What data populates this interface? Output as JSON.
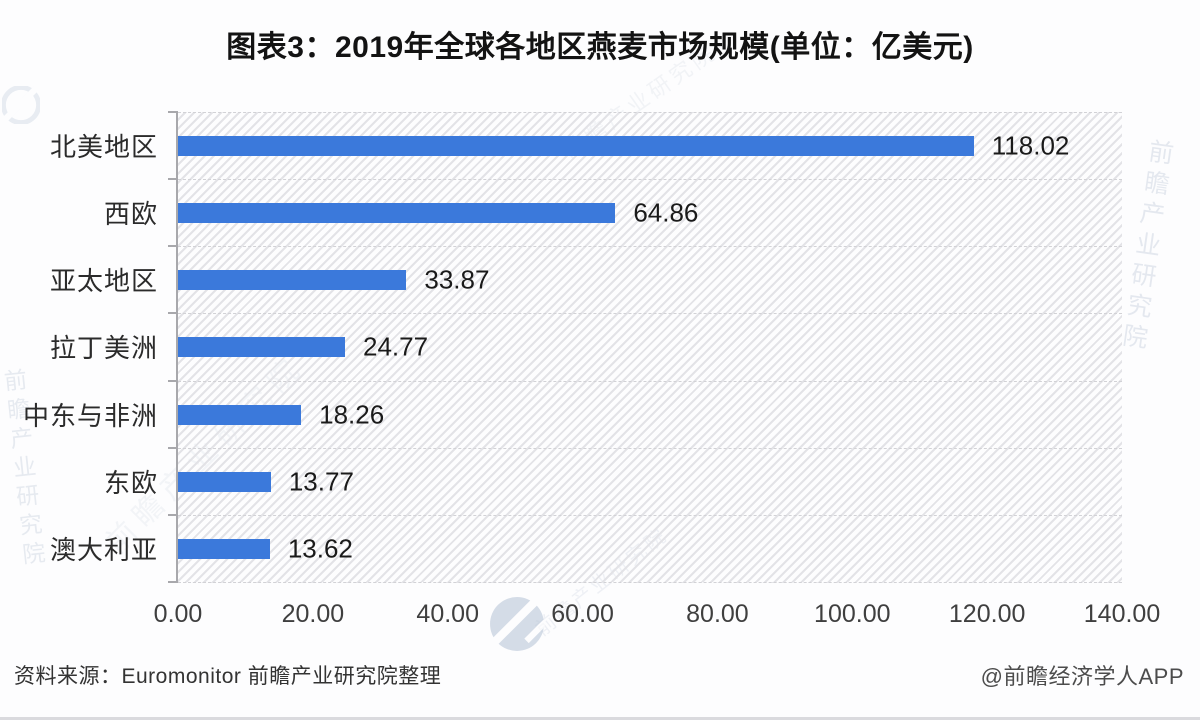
{
  "title": "图表3：2019年全球各地区燕麦市场规模(单位：亿美元)",
  "chart_data": {
    "type": "bar",
    "orientation": "horizontal",
    "title": "图表3：2019年全球各地区燕麦市场规模(单位：亿美元)",
    "categories": [
      "北美地区",
      "西欧",
      "亚太地区",
      "拉丁美洲",
      "中东与非洲",
      "东欧",
      "澳大利亚"
    ],
    "values": [
      118.02,
      64.86,
      33.87,
      24.77,
      18.26,
      13.77,
      13.62
    ],
    "value_labels": [
      "118.02",
      "64.86",
      "33.87",
      "24.77",
      "18.26",
      "13.77",
      "13.62"
    ],
    "xlabel": "",
    "ylabel": "",
    "xlim": [
      0,
      140
    ],
    "x_ticks": [
      "0.00",
      "20.00",
      "40.00",
      "60.00",
      "80.00",
      "100.00",
      "120.00",
      "140.00"
    ],
    "unit": "亿美元",
    "bar_color": "#3B79DB",
    "grid": "diagonal-hatch background with dashed horizontal row separators",
    "legend": "none"
  },
  "footer": {
    "source": "资料来源：Euromonitor 前瞻产业研究院整理",
    "credit": "@前瞻经济学人APP"
  },
  "watermark": {
    "text": "前瞻产业研究院"
  }
}
